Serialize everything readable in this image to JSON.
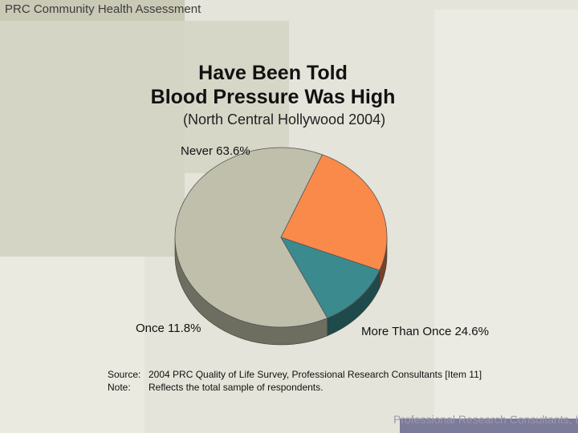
{
  "header": {
    "title": "PRC Community Health Assessment"
  },
  "chart_data": {
    "type": "pie",
    "title": [
      "Have Been Told",
      "Blood Pressure Was High"
    ],
    "subtitle": "(North Central Hollywood 2004)",
    "categories": [
      "Never",
      "Once",
      "More Than Once"
    ],
    "values": [
      63.6,
      11.8,
      24.6
    ],
    "value_labels": [
      "63.6%",
      "11.8%",
      "24.6%"
    ],
    "colors": [
      "#bfbfab",
      "#3a8a8e",
      "#fa8a4a"
    ],
    "side_colors": [
      "#6e6e60",
      "#1f4a4c",
      "#7a4028"
    ]
  },
  "labels": {
    "never": "Never  63.6%",
    "once": "Once  11.8%",
    "more": "More Than Once  24.6%"
  },
  "source": {
    "source_key": "Source:",
    "source_text": "2004 PRC Quality of Life Survey, Professional Research Consultants [Item 11]",
    "note_key": "Note:",
    "note_text": "Reflects the total sample of respondents."
  },
  "footer": {
    "text": "Professional Research Consultants, Inc."
  }
}
